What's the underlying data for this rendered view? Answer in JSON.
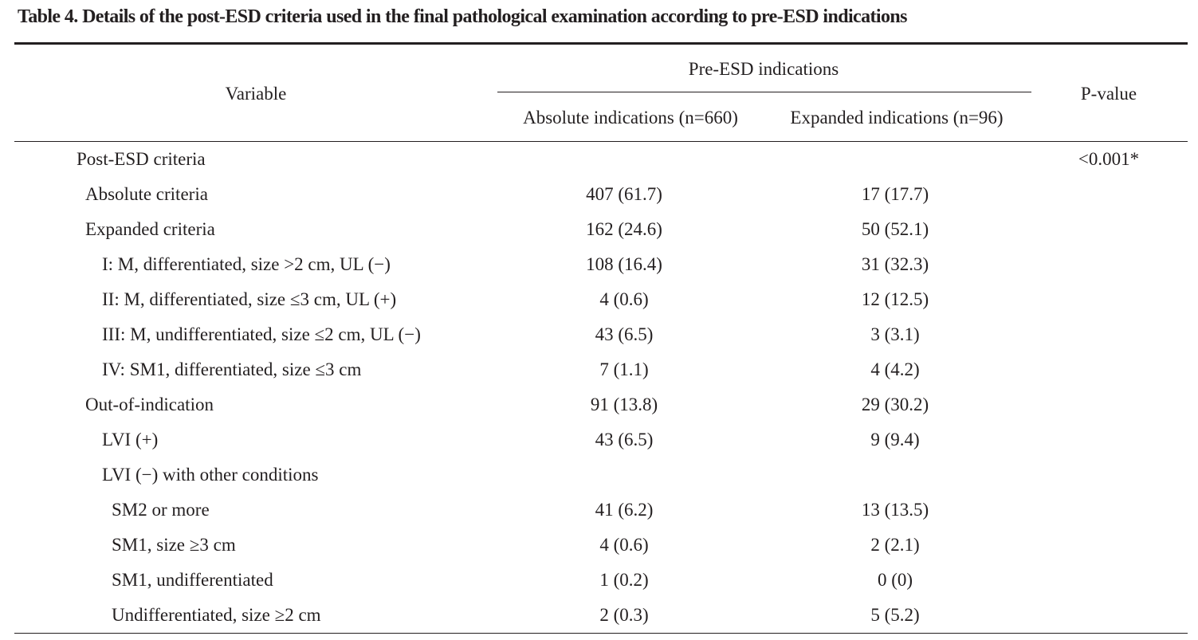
{
  "caption": "Table 4. Details of the post-ESD criteria used in the final pathological examination according to pre-ESD indications",
  "header": {
    "variable": "Variable",
    "group": "Pre-ESD indications",
    "col_absolute": "Absolute indications (n=660)",
    "col_expanded": "Expanded indications (n=96)",
    "p_value": "P-value"
  },
  "rows": [
    {
      "label": "Post-ESD criteria",
      "level": 0,
      "absolute": "",
      "expanded": "",
      "p": "<0.001*"
    },
    {
      "label": "Absolute criteria",
      "level": 1,
      "absolute": "407 (61.7)",
      "expanded": "17 (17.7)",
      "p": ""
    },
    {
      "label": "Expanded criteria",
      "level": 1,
      "absolute": "162 (24.6)",
      "expanded": "50 (52.1)",
      "p": ""
    },
    {
      "label": "I: M, differentiated, size >2 cm, UL (−)",
      "level": 2,
      "absolute": "108 (16.4)",
      "expanded": "31 (32.3)",
      "p": ""
    },
    {
      "label": "II: M, differentiated, size ≤3 cm, UL (+)",
      "level": 2,
      "absolute": "4 (0.6)",
      "expanded": "12 (12.5)",
      "p": ""
    },
    {
      "label": "III: M, undifferentiated, size ≤2 cm, UL (−)",
      "level": 2,
      "absolute": "43 (6.5)",
      "expanded": "3 (3.1)",
      "p": ""
    },
    {
      "label": "IV: SM1, differentiated, size ≤3 cm",
      "level": 2,
      "absolute": "7 (1.1)",
      "expanded": "4 (4.2)",
      "p": ""
    },
    {
      "label": "Out-of-indication",
      "level": 1,
      "absolute": "91 (13.8)",
      "expanded": "29 (30.2)",
      "p": ""
    },
    {
      "label": "LVI (+)",
      "level": 2,
      "absolute": "43 (6.5)",
      "expanded": "9 (9.4)",
      "p": ""
    },
    {
      "label": "LVI (−) with other conditions",
      "level": 2,
      "absolute": "",
      "expanded": "",
      "p": ""
    },
    {
      "label": "SM2 or more",
      "level": 3,
      "absolute": "41 (6.2)",
      "expanded": "13 (13.5)",
      "p": ""
    },
    {
      "label": "SM1, size ≥3 cm",
      "level": 3,
      "absolute": "4 (0.6)",
      "expanded": "2 (2.1)",
      "p": ""
    },
    {
      "label": "SM1, undifferentiated",
      "level": 3,
      "absolute": "1 (0.2)",
      "expanded": "0 (0)",
      "p": ""
    },
    {
      "label": "Undifferentiated, size ≥2 cm",
      "level": 3,
      "absolute": "2 (0.3)",
      "expanded": "5 (5.2)",
      "p": ""
    }
  ]
}
